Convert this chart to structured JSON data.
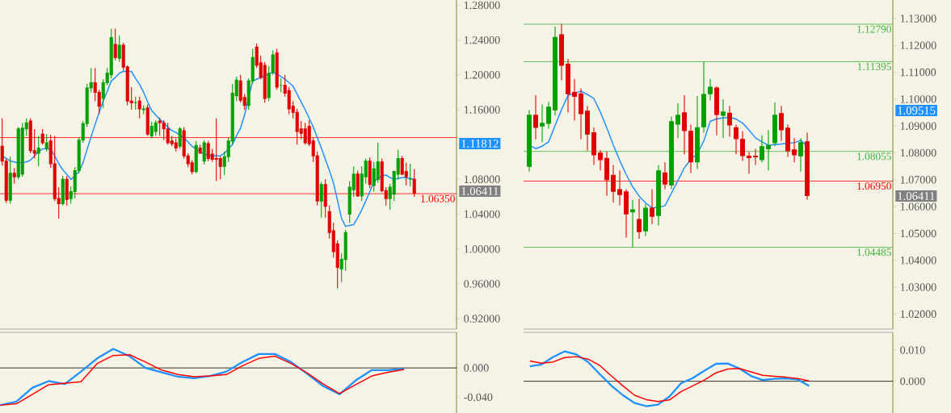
{
  "chart_data": [
    {
      "type": "candlestick",
      "categories": [
        null,
        null,
        null,
        null,
        null,
        null,
        null,
        null,
        null,
        null,
        null,
        null,
        null,
        null,
        null,
        null,
        null,
        null,
        null,
        null,
        null,
        null,
        null,
        null,
        null,
        null,
        null,
        null,
        null,
        null,
        null,
        null,
        null,
        null,
        null,
        null,
        null,
        null,
        null,
        null,
        null,
        null,
        null,
        null,
        null,
        null,
        null,
        null,
        null,
        null,
        null,
        null,
        null,
        null,
        null,
        null,
        null,
        null,
        null,
        null,
        null,
        null,
        null,
        null,
        null,
        null,
        null,
        null,
        null,
        null,
        null,
        null,
        null,
        null,
        null,
        null,
        null,
        null,
        null,
        null,
        null,
        null,
        null,
        null,
        null,
        null,
        null,
        null,
        null,
        null,
        null,
        null,
        null,
        null,
        null,
        null,
        null,
        null,
        null,
        null,
        null,
        null,
        null
      ],
      "ohlc": [
        [
          1.118,
          1.15,
          1.096,
          1.101
        ],
        [
          1.101,
          1.104,
          1.053,
          1.056
        ],
        [
          1.056,
          1.106,
          1.052,
          1.087
        ],
        [
          1.087,
          1.093,
          1.075,
          1.083
        ],
        [
          1.083,
          1.14,
          1.08,
          1.138
        ],
        [
          1.086,
          1.145,
          1.083,
          1.139
        ],
        [
          1.138,
          1.15,
          1.13,
          1.145
        ],
        [
          1.147,
          1.15,
          1.11,
          1.113
        ],
        [
          1.113,
          1.138,
          1.104,
          1.11
        ],
        [
          1.11,
          1.13,
          1.095,
          1.116
        ],
        [
          1.132,
          1.138,
          1.12,
          1.122
        ],
        [
          1.115,
          1.132,
          1.112,
          1.122
        ],
        [
          1.124,
          1.131,
          1.093,
          1.098
        ],
        [
          1.098,
          1.13,
          1.055,
          1.058
        ],
        [
          1.058,
          1.071,
          1.035,
          1.052
        ],
        [
          1.052,
          1.084,
          1.05,
          1.08
        ],
        [
          1.08,
          1.084,
          1.05,
          1.057
        ],
        [
          1.058,
          1.072,
          1.052,
          1.066
        ],
        [
          1.066,
          1.094,
          1.058,
          1.09
        ],
        [
          1.09,
          1.128,
          1.087,
          1.125
        ],
        [
          1.125,
          1.147,
          1.122,
          1.144
        ],
        [
          1.144,
          1.19,
          1.14,
          1.185
        ],
        [
          1.185,
          1.208,
          1.18,
          1.191
        ],
        [
          1.191,
          1.208,
          1.17,
          1.18
        ],
        [
          1.18,
          1.183,
          1.155,
          1.164
        ],
        [
          1.173,
          1.195,
          1.162,
          1.191
        ],
        [
          1.191,
          1.208,
          1.188,
          1.202
        ],
        [
          1.2,
          1.253,
          1.196,
          1.243
        ],
        [
          1.235,
          1.253,
          1.217,
          1.22
        ],
        [
          1.219,
          1.245,
          1.215,
          1.234
        ],
        [
          1.234,
          1.237,
          1.205,
          1.209
        ],
        [
          1.209,
          1.211,
          1.165,
          1.17
        ],
        [
          1.17,
          1.186,
          1.16,
          1.168
        ],
        [
          1.168,
          1.175,
          1.16,
          1.168
        ],
        [
          1.17,
          1.175,
          1.15,
          1.161
        ],
        [
          1.16,
          1.165,
          1.155,
          1.161
        ],
        [
          1.162,
          1.166,
          1.13,
          1.132
        ],
        [
          1.13,
          1.146,
          1.127,
          1.141
        ],
        [
          1.135,
          1.148,
          1.13,
          1.145
        ],
        [
          1.147,
          1.151,
          1.13,
          1.145
        ],
        [
          1.145,
          1.148,
          1.125,
          1.138
        ],
        [
          1.138,
          1.145,
          1.12,
          1.122
        ],
        [
          1.124,
          1.13,
          1.118,
          1.121
        ],
        [
          1.122,
          1.127,
          1.112,
          1.116
        ],
        [
          1.118,
          1.14,
          1.115,
          1.138
        ],
        [
          1.136,
          1.14,
          1.104,
          1.107
        ],
        [
          1.107,
          1.11,
          1.094,
          1.098
        ],
        [
          1.099,
          1.102,
          1.086,
          1.089
        ],
        [
          1.089,
          1.124,
          1.087,
          1.119
        ],
        [
          1.116,
          1.12,
          1.11,
          1.11
        ],
        [
          1.101,
          1.125,
          1.097,
          1.122
        ],
        [
          1.121,
          1.124,
          1.101,
          1.104
        ],
        [
          1.109,
          1.115,
          1.1,
          1.103
        ],
        [
          1.104,
          1.15,
          1.078,
          1.103
        ],
        [
          1.104,
          1.106,
          1.08,
          1.095
        ],
        [
          1.095,
          1.112,
          1.085,
          1.106
        ],
        [
          1.106,
          1.128,
          1.1,
          1.124
        ],
        [
          1.124,
          1.19,
          1.12,
          1.179
        ],
        [
          1.176,
          1.198,
          1.17,
          1.194
        ],
        [
          1.193,
          1.2,
          1.168,
          1.171
        ],
        [
          1.174,
          1.178,
          1.16,
          1.165
        ],
        [
          1.165,
          1.196,
          1.16,
          1.193
        ],
        [
          1.193,
          1.23,
          1.19,
          1.22
        ],
        [
          1.232,
          1.236,
          1.208,
          1.211
        ],
        [
          1.214,
          1.222,
          1.195,
          1.197
        ],
        [
          1.211,
          1.215,
          1.168,
          1.173
        ],
        [
          1.174,
          1.21,
          1.17,
          1.202
        ],
        [
          1.203,
          1.228,
          1.2,
          1.223
        ],
        [
          1.225,
          1.23,
          1.183,
          1.186
        ],
        [
          1.188,
          1.196,
          1.18,
          1.188
        ],
        [
          1.188,
          1.2,
          1.175,
          1.179
        ],
        [
          1.182,
          1.186,
          1.155,
          1.161
        ],
        [
          1.164,
          1.17,
          1.15,
          1.157
        ],
        [
          1.157,
          1.161,
          1.12,
          1.135
        ],
        [
          1.138,
          1.147,
          1.126,
          1.133
        ],
        [
          1.138,
          1.145,
          1.12,
          1.122
        ],
        [
          1.141,
          1.148,
          1.118,
          1.121
        ],
        [
          1.124,
          1.128,
          1.1,
          1.107
        ],
        [
          1.107,
          1.112,
          1.05,
          1.055
        ],
        [
          1.055,
          1.077,
          1.036,
          1.074
        ],
        [
          1.074,
          1.08,
          1.036,
          1.049
        ],
        [
          1.043,
          1.05,
          1.012,
          1.019
        ],
        [
          1.021,
          1.03,
          0.99,
          0.997
        ],
        [
          1.006,
          1.01,
          0.955,
          0.979
        ],
        [
          0.977,
          0.995,
          0.962,
          0.988
        ],
        [
          0.988,
          1.022,
          0.975,
          1.019
        ],
        [
          1.04,
          1.078,
          1.03,
          1.071
        ],
        [
          1.068,
          1.095,
          1.06,
          1.086
        ],
        [
          1.086,
          1.09,
          1.06,
          1.061
        ],
        [
          1.061,
          1.095,
          1.055,
          1.086
        ],
        [
          1.083,
          1.104,
          1.075,
          1.101
        ],
        [
          1.101,
          1.105,
          1.07,
          1.074
        ],
        [
          1.073,
          1.1,
          1.066,
          1.092
        ],
        [
          1.08,
          1.122,
          1.076,
          1.1
        ],
        [
          1.1,
          1.104,
          1.065,
          1.067
        ],
        [
          1.067,
          1.071,
          1.05,
          1.058
        ],
        [
          1.058,
          1.075,
          1.045,
          1.071
        ],
        [
          1.063,
          1.09,
          1.055,
          1.089
        ],
        [
          1.086,
          1.114,
          1.08,
          1.104
        ],
        [
          1.104,
          1.107,
          1.085,
          1.086
        ],
        [
          1.089,
          1.099,
          1.073,
          1.083
        ],
        [
          1.08,
          1.098,
          1.072,
          1.08
        ],
        [
          1.08,
          1.092,
          1.06,
          1.06411
        ]
      ],
      "series": [
        {
          "type": "line",
          "color": "#1e90ff",
          "values": [
            1.107,
            1.104,
            1.101,
            1.1,
            1.099,
            1.099,
            1.1,
            1.102,
            1.107,
            1.112,
            1.115,
            1.115,
            1.115,
            1.107,
            1.098,
            1.091,
            1.086,
            1.08,
            1.084,
            1.089,
            1.099,
            1.114,
            1.129,
            1.143,
            1.157,
            1.17,
            1.181,
            1.193,
            1.197,
            1.202,
            1.204,
            1.204,
            1.204,
            1.196,
            1.189,
            1.18,
            1.169,
            1.159,
            1.154,
            1.149,
            1.145,
            1.14,
            1.136,
            1.134,
            1.131,
            1.128,
            1.123,
            1.118,
            1.115,
            1.112,
            1.109,
            null,
            1.107,
            1.107,
            1.107,
            1.11,
            1.115,
            1.12,
            1.13,
            1.139,
            1.154,
            null,
            1.193,
            1.195,
            1.197,
            null,
            1.201,
            1.203,
            1.201,
            1.198,
            1.195,
            1.191,
            1.187,
            1.178,
            1.169,
            1.16,
            1.15,
            1.14,
            1.128,
            1.116,
            1.103,
            1.09,
            1.076,
            1.056,
            1.035,
            1.026,
            1.027,
            1.028,
            1.036,
            1.045,
            1.055,
            1.066,
            1.077,
            1.081,
            1.084,
            1.085,
            1.082,
            1.08,
            1.081,
            1.082,
            1.082,
            1.081,
            1.08
          ]
        }
      ],
      "ylim": [
        0.908,
        1.286
      ],
      "yticks": [
        {
          "value": 0.92,
          "label": "0.92000"
        },
        {
          "value": 0.96,
          "label": "0.96000"
        },
        {
          "value": 1.0,
          "label": "1.00000"
        },
        {
          "value": 1.04,
          "label": "1.04000"
        },
        {
          "value": 1.08,
          "label": "1.08000"
        },
        {
          "value": 1.16,
          "label": "1.16000"
        },
        {
          "value": 1.2,
          "label": "1.20000"
        },
        {
          "value": 1.24,
          "label": "1.24000"
        },
        {
          "value": 1.28,
          "label": "1.28000"
        }
      ],
      "tick_labels": "y",
      "ref_lines": [
        {
          "axis": "y",
          "value": 1.128,
          "color": "#ff0000"
        },
        {
          "axis": "y",
          "value": 1.0635,
          "label": "1.06350",
          "color": "#ff0000"
        }
      ],
      "annotations": [
        "1.11812",
        "1.06411"
      ]
    },
    {
      "type": "line",
      "categories": [
        null,
        null,
        null,
        null,
        null,
        null,
        null,
        null,
        null,
        null,
        null,
        null,
        null,
        null,
        null,
        null,
        null,
        null,
        null,
        null,
        null,
        null,
        null,
        null,
        null,
        null
      ],
      "series": [
        {
          "color": "#1e90ff",
          "values": [
            -0.051,
            -0.046,
            -0.027,
            -0.018,
            -0.022,
            -0.005,
            0.013,
            0.026,
            0.016,
            0.0,
            -0.006,
            -0.012,
            -0.014,
            -0.011,
            -0.005,
            0.008,
            0.019,
            0.019,
            0.008,
            -0.008,
            -0.025,
            -0.036,
            -0.017,
            -0.003,
            -0.003,
            -0.001
          ]
        },
        {
          "color": "#ff0000",
          "values": [
            -0.051,
            -0.049,
            -0.036,
            -0.023,
            -0.021,
            -0.019,
            0.006,
            0.017,
            0.018,
            0.008,
            -0.003,
            -0.009,
            -0.012,
            -0.011,
            -0.009,
            0.003,
            0.013,
            0.016,
            0.006,
            -0.007,
            -0.022,
            -0.035,
            -0.023,
            -0.011,
            -0.006,
            -0.002
          ]
        }
      ],
      "ylim": [
        -0.0616,
        0.0486
      ],
      "yticks": [
        {
          "value": -0.04,
          "label": "-0.040"
        },
        {
          "value": 0,
          "label": "0.000"
        }
      ],
      "tick_labels": "y",
      "ref_lines": [
        {
          "axis": "y",
          "value": 0,
          "color": "#000000"
        }
      ]
    },
    {
      "type": "candlestick",
      "categories": [
        null,
        null,
        null,
        null,
        null,
        null,
        null,
        null,
        null,
        null,
        null,
        null,
        null,
        null,
        null,
        null,
        null,
        null,
        null,
        null,
        null,
        null,
        null,
        null,
        null,
        null,
        null,
        null,
        null,
        null,
        null,
        null,
        null,
        null,
        null,
        null,
        null,
        null,
        null,
        null,
        null,
        null,
        null,
        null
      ],
      "ohlc": [
        [
          1.075,
          1.096,
          1.073,
          1.094
        ],
        [
          1.094,
          1.1015,
          1.085,
          1.0895
        ],
        [
          1.09,
          1.098,
          1.084,
          1.091
        ],
        [
          1.091,
          1.099,
          1.089,
          1.097
        ],
        [
          1.096,
          1.127,
          1.094,
          1.123
        ],
        [
          1.124,
          1.128,
          1.107,
          1.1126
        ],
        [
          1.113,
          1.115,
          1.095,
          1.102
        ],
        [
          1.1025,
          1.1075,
          1.092,
          1.101
        ],
        [
          1.102,
          1.104,
          1.085,
          1.0946
        ],
        [
          1.0955,
          1.0975,
          1.0808,
          1.087
        ],
        [
          1.0875,
          1.0895,
          1.0755,
          1.0793
        ],
        [
          1.0799,
          1.081,
          1.0735,
          1.0775
        ],
        [
          1.078,
          1.0805,
          1.064,
          1.07
        ],
        [
          1.0717,
          1.0755,
          1.0615,
          1.0657
        ],
        [
          1.0663,
          1.0735,
          1.0605,
          1.0645
        ],
        [
          1.0655,
          1.0665,
          1.0485,
          1.0573
        ],
        [
          1.058,
          1.0625,
          1.0448,
          1.0588
        ],
        [
          1.0552,
          1.063,
          1.048,
          1.0507
        ],
        [
          1.051,
          1.061,
          1.049,
          1.0594
        ],
        [
          1.0594,
          1.0665,
          1.0535,
          1.0564
        ],
        [
          1.0567,
          1.0755,
          1.053,
          1.0733
        ],
        [
          1.0726,
          1.0765,
          1.0665,
          1.0684
        ],
        [
          1.0681,
          1.0935,
          1.0665,
          1.0916
        ],
        [
          1.0907,
          1.0985,
          1.0855,
          1.094
        ],
        [
          1.0949,
          1.1015,
          1.0795,
          1.0883
        ],
        [
          1.088,
          1.0905,
          1.0725,
          1.0766
        ],
        [
          1.0766,
          1.1012,
          1.074,
          1.0894
        ],
        [
          1.0897,
          1.114,
          1.0875,
          1.1018
        ],
        [
          1.102,
          1.1075,
          1.0995,
          1.1045
        ],
        [
          1.1042,
          1.1048,
          1.0865,
          1.0943
        ],
        [
          1.094,
          1.1,
          1.0855,
          1.0952
        ],
        [
          1.0948,
          1.0975,
          1.086,
          1.0904
        ],
        [
          1.0894,
          1.0905,
          1.0795,
          1.0853
        ],
        [
          1.085,
          1.088,
          1.077,
          1.079
        ],
        [
          1.0788,
          1.0803,
          1.0723,
          1.0782
        ],
        [
          1.0788,
          1.0815,
          1.0755,
          1.0785
        ],
        [
          1.0775,
          1.0865,
          1.0765,
          1.0823
        ],
        [
          1.0815,
          1.0885,
          1.0735,
          1.0828
        ],
        [
          1.0838,
          1.0988,
          1.0825,
          1.094
        ],
        [
          1.0946,
          1.0975,
          1.0845,
          1.0886
        ],
        [
          1.0892,
          1.0905,
          1.0785,
          1.0808
        ],
        [
          1.0811,
          1.0855,
          1.0765,
          1.0793
        ],
        [
          1.0789,
          1.0855,
          1.073,
          1.0838
        ],
        [
          1.0841,
          1.0875,
          1.0626,
          1.06411
        ]
      ],
      "series": [
        {
          "type": "line",
          "color": "#1e90ff",
          "values": [
            1.0829,
            1.0816,
            1.0825,
            1.0841,
            1.0902,
            1.0961,
            1.1014,
            1.1022,
            1.103,
            1.1017,
            1.1002,
            1.0952,
            1.0893,
            1.0829,
            1.0772,
            1.0719,
            1.0674,
            1.0639,
            1.0614,
            1.0595,
            1.0598,
            1.0603,
            1.065,
            1.0697,
            1.0744,
            1.0776,
            1.0797,
            1.0844,
            1.0917,
            1.0927,
            1.093,
            1.0933,
            1.0926,
            1.0911,
            1.0885,
            1.0856,
            1.0841,
            1.0828,
            1.0831,
            1.0833,
            1.0836,
            1.0838,
            1.0847,
            1.0824
          ]
        }
      ],
      "ylim": [
        1.0144,
        1.1369
      ],
      "yticks": [
        {
          "value": 1.02,
          "label": "1.02000"
        },
        {
          "value": 1.03,
          "label": "1.03000"
        },
        {
          "value": 1.04,
          "label": "1.04000"
        },
        {
          "value": 1.05,
          "label": "1.05000"
        },
        {
          "value": 1.06,
          "label": "1.06000"
        },
        {
          "value": 1.07,
          "label": "1.07000"
        },
        {
          "value": 1.08,
          "label": "1.08000"
        },
        {
          "value": 1.09,
          "label": "1.09000"
        },
        {
          "value": 1.1,
          "label": "1.10000"
        },
        {
          "value": 1.11,
          "label": "1.11000"
        },
        {
          "value": 1.12,
          "label": "1.12000"
        },
        {
          "value": 1.13,
          "label": "1.13000"
        }
      ],
      "tick_labels": "y",
      "ref_lines": [
        {
          "axis": "y",
          "value": 1.1279,
          "label": "1.12790",
          "color": "#3cb43c"
        },
        {
          "axis": "y",
          "value": 1.11395,
          "label": "1.11395",
          "color": "#3cb43c"
        },
        {
          "axis": "y",
          "value": 1.08055,
          "label": "1.08055",
          "color": "#3cb43c"
        },
        {
          "axis": "y",
          "value": 1.0695,
          "label": "1.06950",
          "color": "#ff0000"
        },
        {
          "axis": "y",
          "value": 1.04485,
          "label": "1.04485",
          "color": "#3cb43c"
        }
      ],
      "annotations": [
        "1.09515",
        "1.06411"
      ]
    },
    {
      "type": "line",
      "categories": [
        null,
        null,
        null,
        null,
        null,
        null,
        null,
        null,
        null,
        null,
        null,
        null,
        null,
        null,
        null,
        null,
        null,
        null,
        null,
        null,
        null,
        null,
        null,
        null,
        null
      ],
      "series": [
        {
          "color": "#1e90ff",
          "values": [
            0.0048,
            0.0054,
            0.0078,
            0.0096,
            0.0086,
            0.0062,
            0.0023,
            -0.0014,
            -0.0045,
            -0.007,
            -0.008,
            -0.0075,
            -0.0049,
            -0.0006,
            0.001,
            0.0034,
            0.0056,
            0.0057,
            0.0041,
            0.0017,
            0.0004,
            0.0008,
            0.0009,
            0.0006,
            -0.0015
          ]
        },
        {
          "color": "#ff0000",
          "values": [
            0.0065,
            0.0058,
            0.0062,
            0.0076,
            0.0079,
            0.0071,
            0.0051,
            0.0017,
            -0.0015,
            -0.0045,
            -0.0059,
            -0.0065,
            -0.006,
            -0.0033,
            -0.0015,
            0.0004,
            0.0027,
            0.0039,
            0.0041,
            0.003,
            0.0019,
            0.0016,
            0.0013,
            0.0009,
            0.0001
          ]
        }
      ],
      "ylim": [
        -0.0102,
        0.0157
      ],
      "yticks": [
        {
          "value": 0,
          "label": "0.000"
        },
        {
          "value": 0.01,
          "label": "0.010"
        }
      ],
      "tick_labels": "y",
      "ref_lines": [
        {
          "axis": "y",
          "value": 0,
          "color": "#000000"
        }
      ]
    }
  ]
}
